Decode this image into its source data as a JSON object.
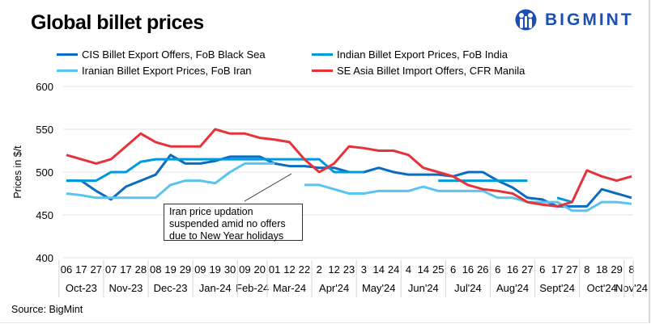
{
  "title": "Global billet prices",
  "logo": {
    "text": "BIGMINT",
    "color": "#1a4fb3"
  },
  "source": "Source: BigMint",
  "chart_data": {
    "type": "line",
    "title": "Global billet prices",
    "ylabel": "Prices in $/t",
    "xlabel": "",
    "ylim": [
      400,
      600
    ],
    "yticks": [
      400,
      450,
      500,
      550,
      600
    ],
    "grid": "horizontal",
    "legend_position": "top",
    "categories": [
      "06",
      "17",
      "27",
      "07",
      "17",
      "28",
      "08",
      "19",
      "29",
      "09",
      "19",
      "30",
      "09",
      "20",
      "01",
      "12",
      "22",
      "2",
      "12",
      "23",
      "3",
      "14",
      "24",
      "4",
      "14",
      "25",
      "6",
      "16",
      "26",
      "6",
      "16",
      "27",
      "6",
      "17",
      "27",
      "8",
      "18",
      "29",
      "8"
    ],
    "months": [
      {
        "label": "Oct-23",
        "count": 3
      },
      {
        "label": "Nov-23",
        "count": 3
      },
      {
        "label": "Dec-23",
        "count": 3
      },
      {
        "label": "Jan-24",
        "count": 3
      },
      {
        "label": "Feb-24",
        "count": 2
      },
      {
        "label": "Mar-24",
        "count": 3
      },
      {
        "label": "Apr'24",
        "count": 3
      },
      {
        "label": "May'24",
        "count": 3
      },
      {
        "label": "Jun'24",
        "count": 3
      },
      {
        "label": "Jul'24",
        "count": 3
      },
      {
        "label": "Aug'24",
        "count": 3
      },
      {
        "label": "Sept'24",
        "count": 3
      },
      {
        "label": "Oct'24",
        "count": 3
      },
      {
        "label": "Nov'24",
        "count": 1
      }
    ],
    "series": [
      {
        "name": "CIS Billet Export Offers, FoB Black Sea",
        "color": "#0a6cc0",
        "values": [
          490,
          490,
          478,
          468,
          483,
          490,
          497,
          520,
          510,
          510,
          513,
          518,
          518,
          518,
          510,
          507,
          507,
          505,
          505,
          500,
          500,
          505,
          500,
          497,
          497,
          497,
          495,
          500,
          500,
          490,
          482,
          470,
          468,
          460,
          460,
          460,
          480,
          475,
          470
        ]
      },
      {
        "name": "Indian Billet Export Prices, FoB India",
        "color": "#0099dd",
        "values": [
          490,
          490,
          490,
          500,
          500,
          512,
          515,
          515,
          515,
          515,
          515,
          515,
          515,
          515,
          515,
          515,
          515,
          515,
          500,
          500,
          500,
          null,
          null,
          null,
          null,
          490,
          490,
          490,
          490,
          490,
          490,
          490,
          null,
          470,
          465,
          null,
          null,
          null,
          null
        ]
      },
      {
        "name": "Iranian Billet Export Prices, FoB Iran",
        "color": "#5bc3f0",
        "values": [
          475,
          473,
          470,
          470,
          470,
          470,
          470,
          485,
          490,
          490,
          487,
          500,
          510,
          510,
          510,
          null,
          485,
          485,
          480,
          475,
          475,
          478,
          478,
          478,
          483,
          478,
          478,
          478,
          478,
          470,
          470,
          465,
          465,
          465,
          455,
          455,
          465,
          465,
          463
        ]
      },
      {
        "name": "SE Asia Billet Import Offers, CFR Manila",
        "color": "#e8323a",
        "values": [
          520,
          515,
          510,
          515,
          530,
          545,
          535,
          530,
          530,
          530,
          550,
          545,
          545,
          540,
          538,
          535,
          515,
          500,
          510,
          530,
          528,
          525,
          525,
          520,
          505,
          500,
          495,
          485,
          480,
          478,
          475,
          465,
          462,
          460,
          465,
          502,
          495,
          490,
          495
        ]
      }
    ],
    "annotation": {
      "lines": [
        "Iran price updation",
        "suspended amid no offers",
        "due to New Year holidays"
      ]
    }
  }
}
